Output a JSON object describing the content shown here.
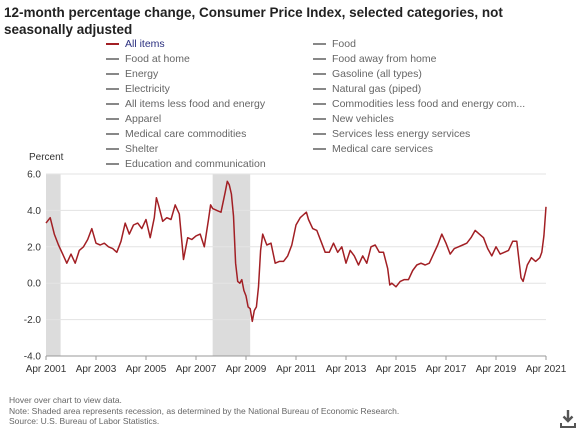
{
  "title": "12-month percentage change, Consumer Price Index, selected categories, not seasonally adjusted",
  "legend": {
    "left": [
      "All items",
      "Food at home",
      "Energy",
      "Electricity",
      "All items less food and energy",
      "Apparel",
      "Medical care commodities",
      "Shelter",
      "Education and communication"
    ],
    "right": [
      "Food",
      "Food away from home",
      "Gasoline (all types)",
      "Natural gas (piped)",
      "Commodities less food and energy com...",
      "New vehicles",
      "Services less energy services",
      "Medical care services"
    ]
  },
  "notes": {
    "hover": "Hover over chart to view data.",
    "note": "Note: Shaded area represents recession, as determined by the National Bureau of Economic Research.",
    "source": "Source: U.S. Bureau of Labor Statistics."
  },
  "chart_data": {
    "type": "line",
    "title": "12-month percentage change, Consumer Price Index, selected categories, not seasonally adjusted",
    "ylabel": "Percent",
    "ylim": [
      -4.0,
      6.0
    ],
    "y_ticks": [
      "6.0",
      "4.0",
      "2.0",
      "0.0",
      "-2.0",
      "-4.0"
    ],
    "x_ticks": [
      "Apr 2001",
      "Apr 2003",
      "Apr 2005",
      "Apr 2007",
      "Apr 2009",
      "Apr 2011",
      "Apr 2013",
      "Apr 2015",
      "Apr 2017",
      "Apr 2019",
      "Apr 2021"
    ],
    "xlim": [
      "Apr 2001",
      "Apr 2021"
    ],
    "recessions": [
      [
        "Mar 2001",
        "Nov 2001"
      ],
      [
        "Dec 2007",
        "Jun 2009"
      ]
    ],
    "grid": true,
    "series": [
      {
        "name": "All items",
        "color": "#a21f24",
        "points": [
          [
            "Apr 2001",
            3.3
          ],
          [
            "Jun 2001",
            3.6
          ],
          [
            "Aug 2001",
            2.7
          ],
          [
            "Oct 2001",
            2.1
          ],
          [
            "Dec 2001",
            1.6
          ],
          [
            "Feb 2002",
            1.1
          ],
          [
            "Apr 2002",
            1.6
          ],
          [
            "Jun 2002",
            1.1
          ],
          [
            "Aug 2002",
            1.8
          ],
          [
            "Oct 2002",
            2.0
          ],
          [
            "Dec 2002",
            2.4
          ],
          [
            "Feb 2003",
            3.0
          ],
          [
            "Apr 2003",
            2.2
          ],
          [
            "Jun 2003",
            2.1
          ],
          [
            "Aug 2003",
            2.2
          ],
          [
            "Oct 2003",
            2.0
          ],
          [
            "Dec 2003",
            1.9
          ],
          [
            "Feb 2004",
            1.7
          ],
          [
            "Apr 2004",
            2.3
          ],
          [
            "Jun 2004",
            3.3
          ],
          [
            "Aug 2004",
            2.7
          ],
          [
            "Oct 2004",
            3.2
          ],
          [
            "Dec 2004",
            3.3
          ],
          [
            "Feb 2005",
            3.0
          ],
          [
            "Apr 2005",
            3.5
          ],
          [
            "Jun 2005",
            2.5
          ],
          [
            "Aug 2005",
            3.6
          ],
          [
            "Sep 2005",
            4.7
          ],
          [
            "Oct 2005",
            4.3
          ],
          [
            "Dec 2005",
            3.4
          ],
          [
            "Feb 2006",
            3.6
          ],
          [
            "Apr 2006",
            3.5
          ],
          [
            "Jun 2006",
            4.3
          ],
          [
            "Aug 2006",
            3.8
          ],
          [
            "Oct 2006",
            1.3
          ],
          [
            "Dec 2006",
            2.5
          ],
          [
            "Feb 2007",
            2.4
          ],
          [
            "Apr 2007",
            2.6
          ],
          [
            "Jun 2007",
            2.7
          ],
          [
            "Aug 2007",
            2.0
          ],
          [
            "Oct 2007",
            3.5
          ],
          [
            "Nov 2007",
            4.3
          ],
          [
            "Dec 2007",
            4.1
          ],
          [
            "Feb 2008",
            4.0
          ],
          [
            "Apr 2008",
            3.9
          ],
          [
            "Jun 2008",
            5.0
          ],
          [
            "Jul 2008",
            5.6
          ],
          [
            "Aug 2008",
            5.4
          ],
          [
            "Sep 2008",
            4.9
          ],
          [
            "Oct 2008",
            3.7
          ],
          [
            "Nov 2008",
            1.1
          ],
          [
            "Dec 2008",
            0.1
          ],
          [
            "Jan 2009",
            0.0
          ],
          [
            "Feb 2009",
            0.2
          ],
          [
            "Mar 2009",
            -0.4
          ],
          [
            "Apr 2009",
            -0.7
          ],
          [
            "May 2009",
            -1.3
          ],
          [
            "Jun 2009",
            -1.4
          ],
          [
            "Jul 2009",
            -2.1
          ],
          [
            "Aug 2009",
            -1.5
          ],
          [
            "Sep 2009",
            -1.3
          ],
          [
            "Oct 2009",
            -0.2
          ],
          [
            "Nov 2009",
            1.8
          ],
          [
            "Dec 2009",
            2.7
          ],
          [
            "Feb 2010",
            2.1
          ],
          [
            "Apr 2010",
            2.2
          ],
          [
            "Jun 2010",
            1.1
          ],
          [
            "Aug 2010",
            1.2
          ],
          [
            "Oct 2010",
            1.2
          ],
          [
            "Dec 2010",
            1.5
          ],
          [
            "Feb 2011",
            2.1
          ],
          [
            "Apr 2011",
            3.2
          ],
          [
            "Jun 2011",
            3.6
          ],
          [
            "Aug 2011",
            3.8
          ],
          [
            "Sep 2011",
            3.9
          ],
          [
            "Oct 2011",
            3.5
          ],
          [
            "Dec 2011",
            3.0
          ],
          [
            "Feb 2012",
            2.9
          ],
          [
            "Apr 2012",
            2.3
          ],
          [
            "Jun 2012",
            1.7
          ],
          [
            "Aug 2012",
            1.7
          ],
          [
            "Oct 2012",
            2.2
          ],
          [
            "Dec 2012",
            1.7
          ],
          [
            "Feb 2013",
            2.0
          ],
          [
            "Apr 2013",
            1.1
          ],
          [
            "Jun 2013",
            1.8
          ],
          [
            "Aug 2013",
            1.5
          ],
          [
            "Oct 2013",
            1.0
          ],
          [
            "Dec 2013",
            1.5
          ],
          [
            "Feb 2014",
            1.1
          ],
          [
            "Apr 2014",
            2.0
          ],
          [
            "Jun 2014",
            2.1
          ],
          [
            "Aug 2014",
            1.7
          ],
          [
            "Oct 2014",
            1.7
          ],
          [
            "Dec 2014",
            0.8
          ],
          [
            "Jan 2015",
            -0.1
          ],
          [
            "Feb 2015",
            0.0
          ],
          [
            "Apr 2015",
            -0.2
          ],
          [
            "Jun 2015",
            0.1
          ],
          [
            "Aug 2015",
            0.2
          ],
          [
            "Oct 2015",
            0.2
          ],
          [
            "Dec 2015",
            0.7
          ],
          [
            "Feb 2016",
            1.0
          ],
          [
            "Apr 2016",
            1.1
          ],
          [
            "Jun 2016",
            1.0
          ],
          [
            "Aug 2016",
            1.1
          ],
          [
            "Oct 2016",
            1.6
          ],
          [
            "Dec 2016",
            2.1
          ],
          [
            "Feb 2017",
            2.7
          ],
          [
            "Apr 2017",
            2.2
          ],
          [
            "Jun 2017",
            1.6
          ],
          [
            "Aug 2017",
            1.9
          ],
          [
            "Oct 2017",
            2.0
          ],
          [
            "Dec 2017",
            2.1
          ],
          [
            "Feb 2018",
            2.2
          ],
          [
            "Apr 2018",
            2.5
          ],
          [
            "Jun 2018",
            2.9
          ],
          [
            "Aug 2018",
            2.7
          ],
          [
            "Oct 2018",
            2.5
          ],
          [
            "Dec 2018",
            1.9
          ],
          [
            "Feb 2019",
            1.5
          ],
          [
            "Apr 2019",
            2.0
          ],
          [
            "Jun 2019",
            1.6
          ],
          [
            "Aug 2019",
            1.7
          ],
          [
            "Oct 2019",
            1.8
          ],
          [
            "Dec 2019",
            2.3
          ],
          [
            "Feb 2020",
            2.3
          ],
          [
            "Apr 2020",
            0.3
          ],
          [
            "May 2020",
            0.1
          ],
          [
            "Jul 2020",
            1.0
          ],
          [
            "Sep 2020",
            1.4
          ],
          [
            "Nov 2020",
            1.2
          ],
          [
            "Jan 2021",
            1.4
          ],
          [
            "Feb 2021",
            1.7
          ],
          [
            "Mar 2021",
            2.6
          ],
          [
            "Apr 2021",
            4.2
          ]
        ]
      }
    ]
  }
}
